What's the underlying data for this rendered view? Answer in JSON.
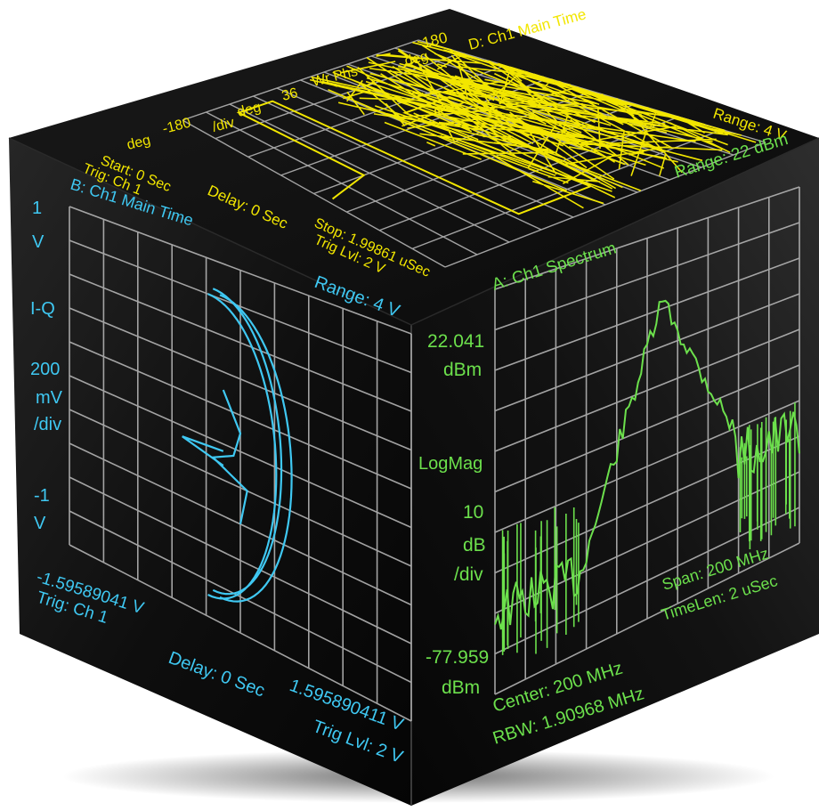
{
  "colors": {
    "top_trace": "#f2e600",
    "left_trace": "#3fc8f2",
    "right_trace": "#6ce04c",
    "face_dark": "#0b0b0b",
    "grid": "#bdbdbd"
  },
  "top_panel": {
    "title": "D: Ch1 Main Time",
    "y_top": "180",
    "y_top_unit": "deg",
    "quantity": "Wr Phs",
    "scale_value": "36",
    "scale_unit": "deg",
    "scale_per": "/div",
    "y_bottom": "-180",
    "y_bottom_unit": "deg",
    "start": "Start: 0 Sec",
    "trigger": "Trig: Ch 1",
    "delay": "Delay: 0 Sec",
    "stop": "Stop: 1.99861 uSec",
    "trig_level": "Trig Lvl: 2 V",
    "range": "Range: 4 V"
  },
  "left_panel": {
    "title": "B: Ch1 Main Time",
    "y_top": "1",
    "y_top_unit": "V",
    "mode": "I-Q",
    "scale_value": "200",
    "scale_unit": "mV",
    "scale_per": "/div",
    "y_bottom": "-1",
    "y_bottom_unit": "V",
    "range": "Range: 4 V",
    "x_min": "-1.59589041 V",
    "trigger": "Trig: Ch 1",
    "delay": "Delay: 0 Sec",
    "x_max": "1.595890411 V",
    "trig_level": "Trig Lvl: 2 V"
  },
  "right_panel": {
    "title": "A: Ch1 Spectrum",
    "range": "Range: 22 dBm",
    "y_top": "22.041",
    "y_top_unit": "dBm",
    "mode": "LogMag",
    "scale_value": "10",
    "scale_unit": "dB",
    "scale_per": "/div",
    "y_bottom": "-77.959",
    "y_bottom_unit": "dBm",
    "center": "Center: 200 MHz",
    "rbw": "RBW: 1.90968 MHz",
    "span": "Span: 200 MHz",
    "time_len": "TimeLen: 2 uSec"
  }
}
